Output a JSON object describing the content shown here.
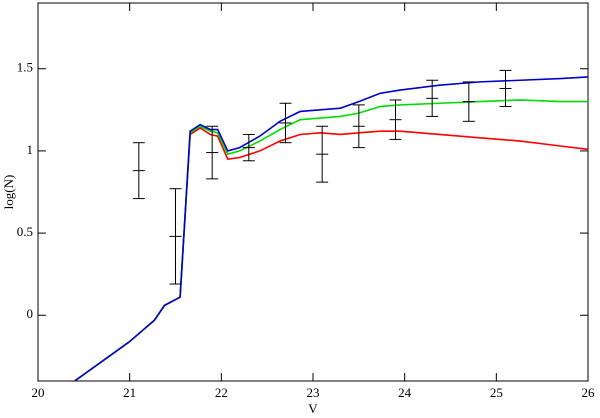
{
  "chart_data": {
    "type": "line",
    "xlabel": "V",
    "ylabel": "log(N)",
    "xlim": [
      20,
      26
    ],
    "ylim": [
      -0.4,
      1.9
    ],
    "xticks": [
      20,
      21,
      22,
      23,
      24,
      25,
      26
    ],
    "yticks": [
      0,
      0.5,
      1,
      1.5
    ],
    "series": [
      {
        "color": "#ff0000",
        "x": [
          20.4,
          21.0,
          21.27,
          21.38,
          21.55,
          21.66,
          21.77,
          21.88,
          21.96,
          22.07,
          22.2,
          22.42,
          22.64,
          22.86,
          23.08,
          23.3,
          23.5,
          23.73,
          23.95,
          24.38,
          24.82,
          25.26,
          25.7,
          26
        ],
        "values": [
          -0.4,
          -0.16,
          -0.03,
          0.06,
          0.11,
          1.1,
          1.14,
          1.1,
          1.09,
          0.95,
          0.96,
          1.0,
          1.06,
          1.1,
          1.11,
          1.1,
          1.11,
          1.12,
          1.12,
          1.1,
          1.08,
          1.06,
          1.03,
          1.01
        ]
      },
      {
        "color": "#00dd00",
        "x": [
          20.4,
          21.0,
          21.27,
          21.38,
          21.55,
          21.66,
          21.77,
          21.88,
          21.96,
          22.07,
          22.2,
          22.42,
          22.64,
          22.86,
          23.08,
          23.3,
          23.5,
          23.73,
          23.95,
          24.38,
          24.82,
          25.26,
          25.7,
          26
        ],
        "values": [
          -0.4,
          -0.16,
          -0.03,
          0.06,
          0.11,
          1.11,
          1.15,
          1.12,
          1.11,
          0.98,
          1.0,
          1.06,
          1.13,
          1.19,
          1.2,
          1.21,
          1.23,
          1.27,
          1.28,
          1.29,
          1.3,
          1.31,
          1.3,
          1.3
        ]
      },
      {
        "color": "#0000cc",
        "x": [
          20.4,
          21.0,
          21.27,
          21.38,
          21.55,
          21.66,
          21.77,
          21.88,
          21.96,
          22.07,
          22.2,
          22.42,
          22.64,
          22.86,
          23.08,
          23.3,
          23.5,
          23.73,
          23.95,
          24.38,
          24.82,
          25.26,
          25.7,
          26
        ],
        "values": [
          -0.4,
          -0.16,
          -0.03,
          0.06,
          0.11,
          1.12,
          1.16,
          1.13,
          1.13,
          1.0,
          1.02,
          1.09,
          1.18,
          1.24,
          1.25,
          1.26,
          1.3,
          1.35,
          1.37,
          1.4,
          1.42,
          1.43,
          1.44,
          1.45
        ]
      },
      {
        "color": "#000000",
        "errorbar": true,
        "x": [
          21.1,
          21.5,
          21.9,
          22.3,
          22.7,
          23.1,
          23.5,
          23.9,
          24.3,
          24.7,
          25.1
        ],
        "values": [
          0.88,
          0.48,
          0.99,
          1.02,
          1.17,
          0.98,
          1.15,
          1.19,
          1.32,
          1.3,
          1.38
        ],
        "errors": [
          0.17,
          0.29,
          0.16,
          0.08,
          0.12,
          0.17,
          0.13,
          0.12,
          0.11,
          0.12,
          0.11
        ]
      }
    ]
  }
}
